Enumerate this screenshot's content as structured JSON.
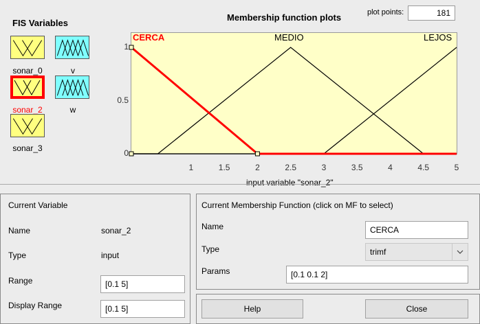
{
  "fis_variables": {
    "title": "FIS Variables",
    "items": [
      {
        "label": "sonar_0",
        "kind": "input",
        "selected": false
      },
      {
        "label": "v",
        "kind": "output",
        "selected": false
      },
      {
        "label": "sonar_2",
        "kind": "input",
        "selected": true
      },
      {
        "label": "w",
        "kind": "output",
        "selected": false
      },
      {
        "label": "sonar_3",
        "kind": "input",
        "selected": false
      }
    ]
  },
  "plot": {
    "title": "Membership function plots",
    "plot_points_label": "plot points:",
    "plot_points_value": "181",
    "xlabel": "input variable \"sonar_2\"",
    "x_ticks": [
      "1",
      "1.5",
      "2",
      "2.5",
      "3",
      "3.5",
      "4",
      "4.5",
      "5"
    ],
    "y_ticks": [
      "1",
      "0.5",
      "0"
    ],
    "xlim": [
      0.1,
      5
    ],
    "ylim": [
      0,
      1
    ],
    "mf_labels": [
      "CERCA",
      "MEDIO",
      "LEJOS"
    ],
    "colors": {
      "selected": "#ff0000",
      "normal": "#000000",
      "background": "#ffffc8"
    }
  },
  "chart_data": {
    "type": "line",
    "title": "Membership function plots",
    "xlabel": "input variable \"sonar_2\"",
    "ylabel": "",
    "xlim": [
      0.1,
      5
    ],
    "ylim": [
      0,
      1
    ],
    "series": [
      {
        "name": "CERCA",
        "x": [
          0.1,
          0.1,
          2,
          5
        ],
        "y": [
          1,
          1,
          0,
          0
        ],
        "selected": true
      },
      {
        "name": "MEDIO",
        "x": [
          0.1,
          0.5,
          2.5,
          4.5,
          5
        ],
        "y": [
          0,
          0,
          1,
          0,
          0
        ],
        "selected": false
      },
      {
        "name": "LEJOS",
        "x": [
          0.1,
          3,
          5
        ],
        "y": [
          0,
          0,
          1
        ],
        "selected": false
      }
    ]
  },
  "current_variable": {
    "title": "Current Variable",
    "name_label": "Name",
    "name_value": "sonar_2",
    "type_label": "Type",
    "type_value": "input",
    "range_label": "Range",
    "range_value": "[0.1 5]",
    "display_range_label": "Display Range",
    "display_range_value": "[0.1 5]"
  },
  "current_mf": {
    "title": "Current Membership Function (click on MF to select)",
    "name_label": "Name",
    "name_value": "CERCA",
    "type_label": "Type",
    "type_value": "trimf",
    "params_label": "Params",
    "params_value": "[0.1 0.1 2]"
  },
  "buttons": {
    "help": "Help",
    "close": "Close"
  }
}
